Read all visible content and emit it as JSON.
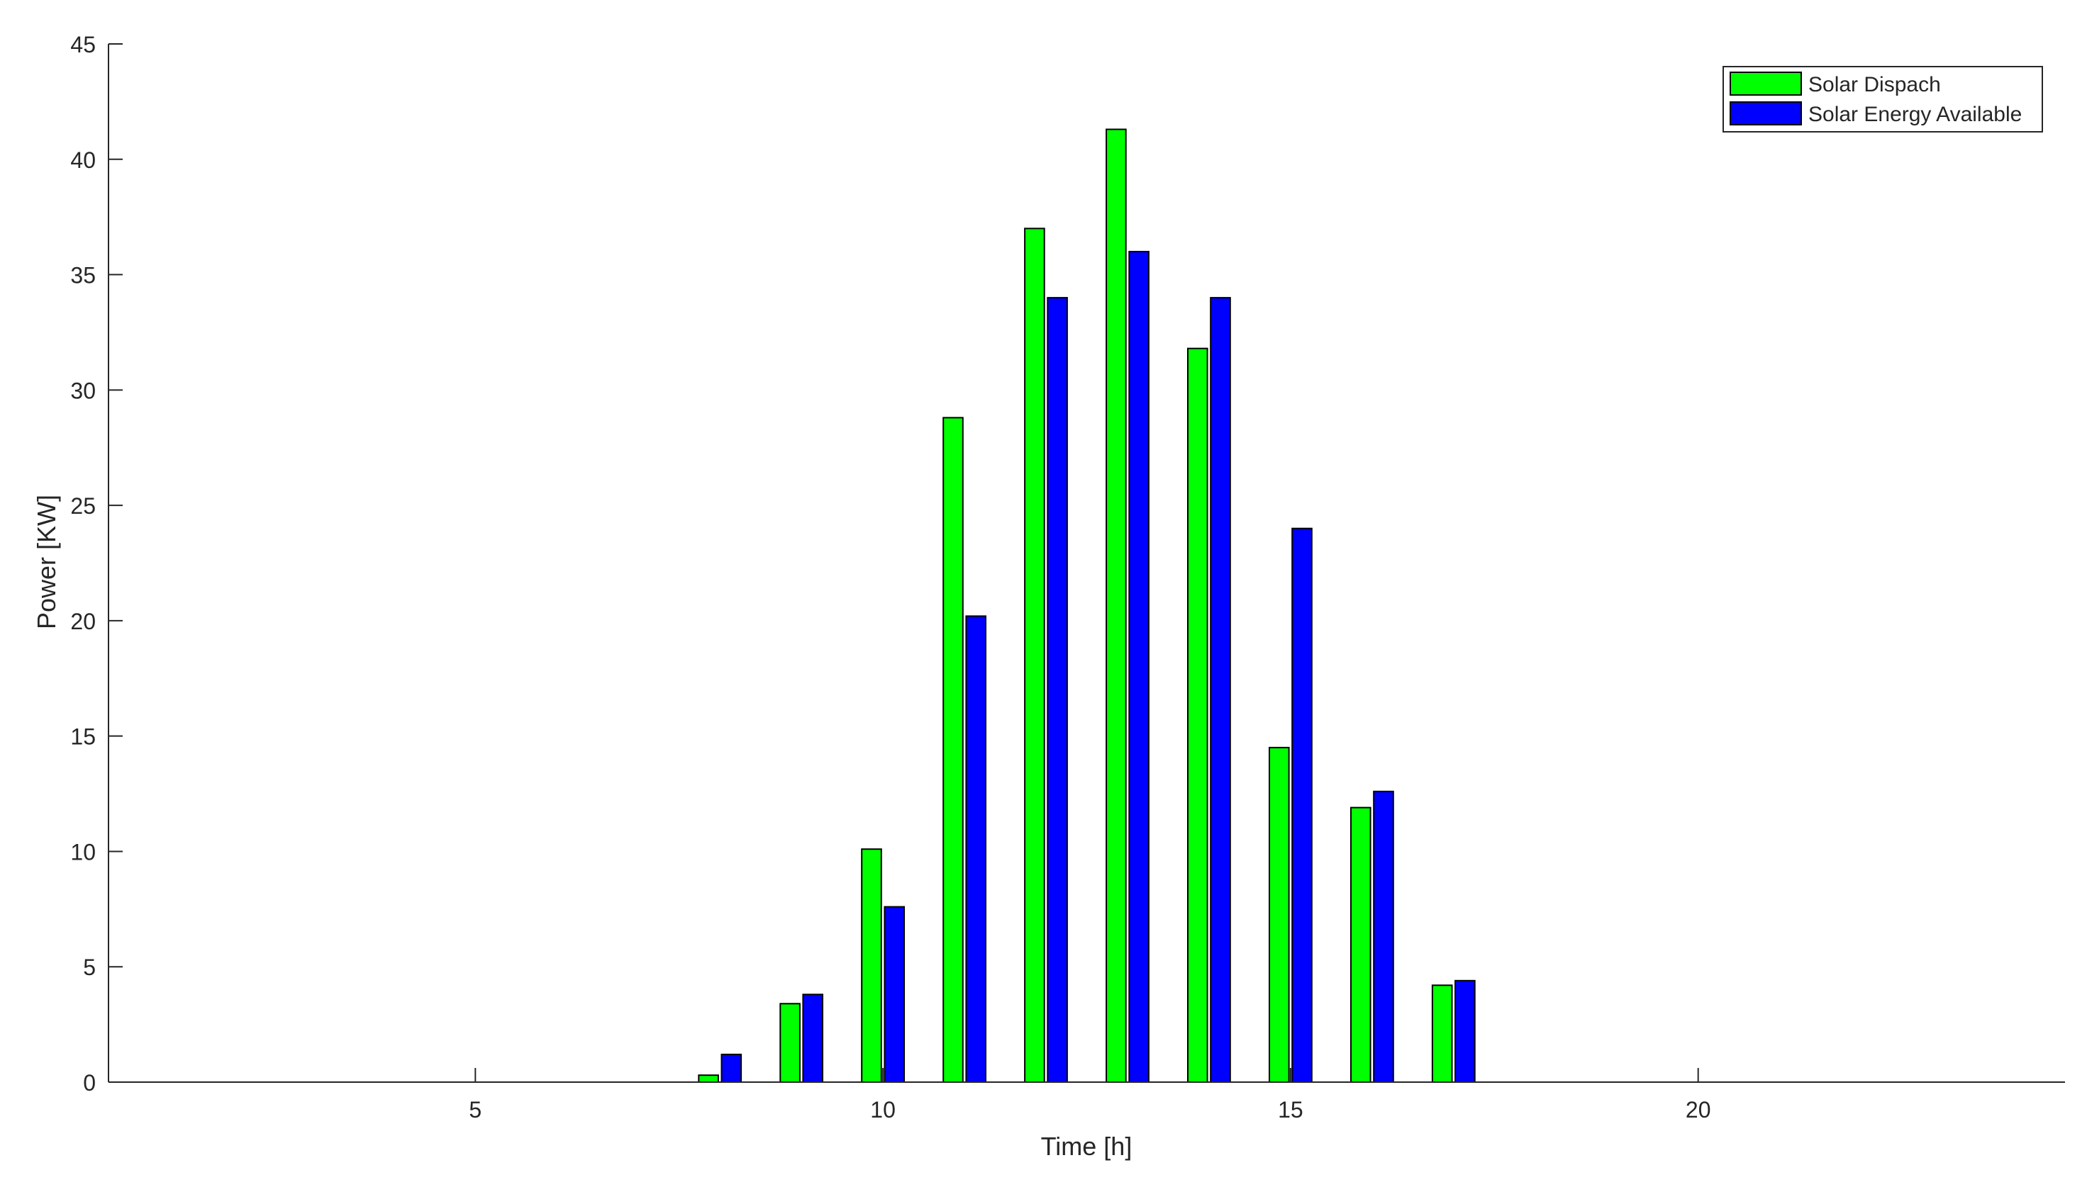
{
  "chart_data": {
    "type": "bar",
    "title": "",
    "xlabel": "Time [h]",
    "ylabel": "Power [KW]",
    "xlim": [
      0.5,
      24.5
    ],
    "ylim": [
      0,
      45
    ],
    "xticks": [
      5,
      10,
      15,
      20
    ],
    "yticks": [
      0,
      5,
      10,
      15,
      20,
      25,
      30,
      35,
      40,
      45
    ],
    "grid": false,
    "legend_position": "top-right",
    "x": [
      1,
      2,
      3,
      4,
      5,
      6,
      7,
      8,
      9,
      10,
      11,
      12,
      13,
      14,
      15,
      16,
      17,
      18,
      19,
      20,
      21,
      22,
      23,
      24
    ],
    "series": [
      {
        "name": "Solar Dispach",
        "color": "#00ff00",
        "values": [
          0,
          0,
          0,
          0,
          0,
          0,
          0,
          0.3,
          3.4,
          10.1,
          28.8,
          37.0,
          41.3,
          31.8,
          14.5,
          11.9,
          4.2,
          0,
          0,
          0,
          0,
          0,
          0,
          0
        ]
      },
      {
        "name": "Solar Energy Available",
        "color": "#0000ff",
        "values": [
          0,
          0,
          0,
          0,
          0,
          0,
          0,
          1.2,
          3.8,
          7.6,
          20.2,
          34.0,
          36.0,
          34.0,
          24.0,
          12.6,
          4.4,
          0,
          0,
          0,
          0,
          0,
          0,
          0
        ]
      }
    ]
  }
}
